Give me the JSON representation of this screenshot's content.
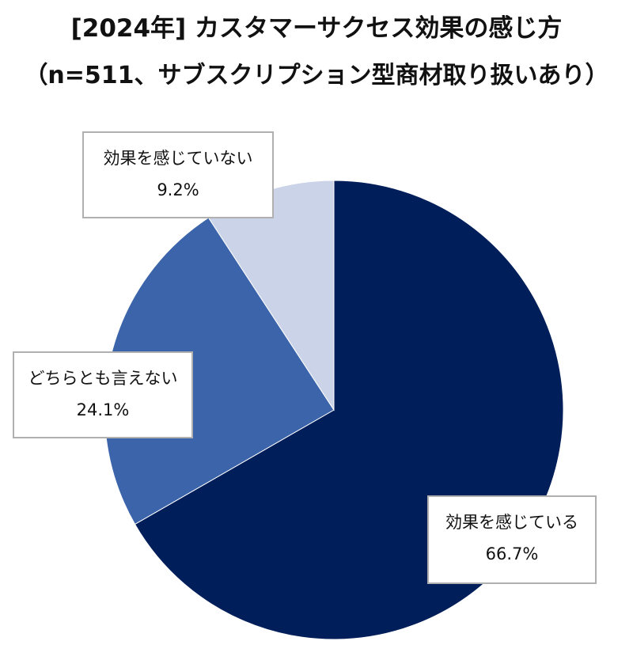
{
  "chart_data": {
    "type": "pie",
    "title": "[2024年] カスタマーサクセス効果の感じ方",
    "subtitle": "（n=511、サブスクリプション型商材取り扱いあり）",
    "slices": [
      {
        "label": "効果を感じている",
        "value": 66.7,
        "value_label": "66.7%",
        "color": "#001e5a"
      },
      {
        "label": "どちらとも言えない",
        "value": 24.1,
        "value_label": "24.1%",
        "color": "#3c64aa"
      },
      {
        "label": "効果を感じていない",
        "value": 9.2,
        "value_label": "9.2%",
        "color": "#cbd3e8"
      }
    ],
    "start_angle": "12 o'clock",
    "direction": "clockwise",
    "legend": "none"
  }
}
